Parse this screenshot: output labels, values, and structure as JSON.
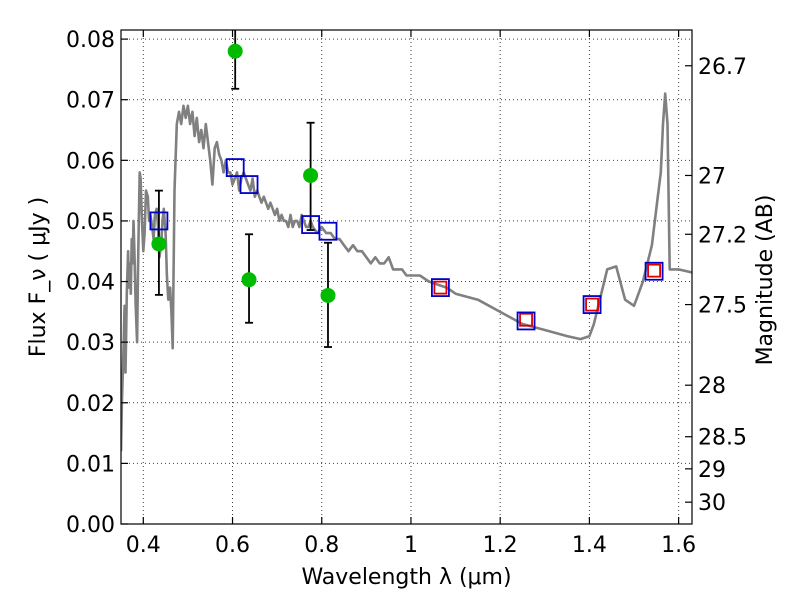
{
  "chart_data": {
    "type": "scatter",
    "xlabel": "Wavelength λ (μm)",
    "ylabel": "Flux F_ν ( μJy )",
    "ylabel_right": "Magnitude (AB)",
    "xlim": [
      0.35,
      1.63
    ],
    "ylim": [
      0.0,
      0.0815
    ],
    "grid": true,
    "x_ticks": [
      0.4,
      0.6,
      0.8,
      1.0,
      1.2,
      1.4,
      1.6
    ],
    "x_tick_labels": [
      "0.4",
      "0.6",
      "0.8",
      "1",
      "1.2",
      "1.4",
      "1.6"
    ],
    "y_ticks": [
      0.0,
      0.01,
      0.02,
      0.03,
      0.04,
      0.05,
      0.06,
      0.07,
      0.08
    ],
    "y_tick_labels": [
      "0.00",
      "0.01",
      "0.02",
      "0.03",
      "0.04",
      "0.05",
      "0.06",
      "0.07",
      "0.08"
    ],
    "right_axis_ticks": [
      {
        "flux": 0.0756,
        "label": "26.7"
      },
      {
        "flux": 0.0575,
        "label": "27"
      },
      {
        "flux": 0.0478,
        "label": "27.2"
      },
      {
        "flux": 0.0362,
        "label": "27.5"
      },
      {
        "flux": 0.0229,
        "label": "28"
      },
      {
        "flux": 0.0144,
        "label": "28.5"
      },
      {
        "flux": 0.0091,
        "label": "29"
      },
      {
        "flux": 0.0036,
        "label": "30"
      }
    ],
    "series": [
      {
        "kind": "model_sed_line",
        "color": "#808080",
        "x": [
          0.35,
          0.352,
          0.356,
          0.358,
          0.36,
          0.363,
          0.366,
          0.368,
          0.37,
          0.372,
          0.374,
          0.376,
          0.378,
          0.38,
          0.383,
          0.386,
          0.388,
          0.39,
          0.392,
          0.394,
          0.397,
          0.4,
          0.403,
          0.406,
          0.41,
          0.413,
          0.416,
          0.42,
          0.423,
          0.426,
          0.43,
          0.433,
          0.436,
          0.44,
          0.443,
          0.446,
          0.45,
          0.453,
          0.456,
          0.46,
          0.463,
          0.466,
          0.47,
          0.475,
          0.48,
          0.485,
          0.49,
          0.495,
          0.5,
          0.505,
          0.51,
          0.515,
          0.52,
          0.525,
          0.53,
          0.535,
          0.54,
          0.545,
          0.55,
          0.555,
          0.56,
          0.565,
          0.57,
          0.575,
          0.58,
          0.585,
          0.59,
          0.595,
          0.6,
          0.605,
          0.61,
          0.615,
          0.62,
          0.625,
          0.63,
          0.635,
          0.64,
          0.645,
          0.65,
          0.655,
          0.66,
          0.665,
          0.67,
          0.675,
          0.68,
          0.685,
          0.69,
          0.695,
          0.7,
          0.705,
          0.71,
          0.715,
          0.72,
          0.725,
          0.73,
          0.735,
          0.74,
          0.745,
          0.75,
          0.755,
          0.76,
          0.765,
          0.77,
          0.775,
          0.78,
          0.79,
          0.8,
          0.81,
          0.82,
          0.83,
          0.84,
          0.85,
          0.86,
          0.87,
          0.88,
          0.89,
          0.9,
          0.91,
          0.92,
          0.93,
          0.94,
          0.95,
          0.96,
          0.97,
          0.98,
          0.99,
          1.0,
          1.02,
          1.04,
          1.06,
          1.08,
          1.1,
          1.15,
          1.2,
          1.25,
          1.3,
          1.35,
          1.38,
          1.4,
          1.41,
          1.42,
          1.44,
          1.46,
          1.48,
          1.5,
          1.51,
          1.52,
          1.53,
          1.54,
          1.55,
          1.56,
          1.565,
          1.57,
          1.575,
          1.58,
          1.6,
          1.63
        ],
        "y": [
          0.012,
          0.02,
          0.03,
          0.036,
          0.025,
          0.038,
          0.045,
          0.039,
          0.043,
          0.038,
          0.047,
          0.043,
          0.05,
          0.045,
          0.036,
          0.03,
          0.042,
          0.05,
          0.058,
          0.057,
          0.05,
          0.045,
          0.048,
          0.055,
          0.054,
          0.05,
          0.051,
          0.049,
          0.047,
          0.051,
          0.052,
          0.049,
          0.044,
          0.046,
          0.05,
          0.052,
          0.048,
          0.041,
          0.037,
          0.039,
          0.035,
          0.029,
          0.055,
          0.066,
          0.068,
          0.066,
          0.069,
          0.067,
          0.069,
          0.066,
          0.068,
          0.064,
          0.067,
          0.063,
          0.065,
          0.062,
          0.066,
          0.063,
          0.06,
          0.056,
          0.062,
          0.063,
          0.061,
          0.06,
          0.058,
          0.06,
          0.058,
          0.058,
          0.056,
          0.057,
          0.058,
          0.055,
          0.057,
          0.058,
          0.057,
          0.056,
          0.055,
          0.057,
          0.054,
          0.055,
          0.054,
          0.053,
          0.054,
          0.053,
          0.052,
          0.053,
          0.052,
          0.051,
          0.052,
          0.05,
          0.051,
          0.05,
          0.05,
          0.049,
          0.051,
          0.049,
          0.05,
          0.05,
          0.049,
          0.051,
          0.05,
          0.049,
          0.049,
          0.05,
          0.049,
          0.048,
          0.049,
          0.048,
          0.048,
          0.047,
          0.047,
          0.046,
          0.045,
          0.046,
          0.045,
          0.045,
          0.044,
          0.043,
          0.044,
          0.043,
          0.043,
          0.044,
          0.042,
          0.042,
          0.042,
          0.041,
          0.041,
          0.041,
          0.04,
          0.0395,
          0.039,
          0.038,
          0.037,
          0.035,
          0.033,
          0.032,
          0.031,
          0.0305,
          0.031,
          0.033,
          0.036,
          0.042,
          0.0425,
          0.037,
          0.036,
          0.038,
          0.04,
          0.043,
          0.046,
          0.052,
          0.058,
          0.066,
          0.071,
          0.066,
          0.042,
          0.042,
          0.0415
        ]
      },
      {
        "kind": "observed_points_with_errors",
        "color": "#00bb00",
        "points": [
          {
            "x": 0.435,
            "y": 0.0462,
            "err_lo": 0.0084,
            "err_hi": 0.0088
          },
          {
            "x": 0.606,
            "y": 0.078,
            "err_lo": 0.0062,
            "err_hi": 0.004
          },
          {
            "x": 0.637,
            "y": 0.0403,
            "err_lo": 0.0071,
            "err_hi": 0.0075
          },
          {
            "x": 0.775,
            "y": 0.0575,
            "err_lo": 0.009,
            "err_hi": 0.0087
          },
          {
            "x": 0.814,
            "y": 0.0377,
            "err_lo": 0.0085,
            "err_hi": 0.0087
          }
        ]
      },
      {
        "kind": "model_band_flux_squares",
        "color": "#0000cc",
        "points": [
          {
            "x": 0.435,
            "y": 0.05
          },
          {
            "x": 0.606,
            "y": 0.0588
          },
          {
            "x": 0.637,
            "y": 0.056
          },
          {
            "x": 0.775,
            "y": 0.0494
          },
          {
            "x": 0.814,
            "y": 0.0483
          },
          {
            "x": 1.066,
            "y": 0.039
          },
          {
            "x": 1.258,
            "y": 0.0335
          },
          {
            "x": 1.406,
            "y": 0.0362
          },
          {
            "x": 1.545,
            "y": 0.0417
          }
        ]
      },
      {
        "kind": "observed_ir_squares",
        "color": "#dd0000",
        "points": [
          {
            "x": 1.066,
            "y": 0.039
          },
          {
            "x": 1.258,
            "y": 0.0337
          },
          {
            "x": 1.406,
            "y": 0.0362
          },
          {
            "x": 1.545,
            "y": 0.0418
          }
        ]
      }
    ]
  }
}
